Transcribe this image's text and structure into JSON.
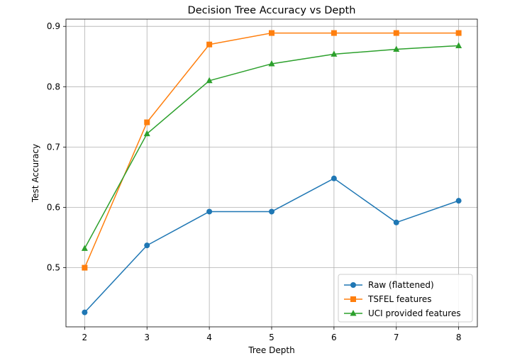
{
  "chart_data": {
    "type": "line",
    "title": "Decision Tree Accuracy vs Depth",
    "xlabel": "Tree Depth",
    "ylabel": "Test Accuracy",
    "x": [
      2,
      3,
      4,
      5,
      6,
      7,
      8
    ],
    "xticks": [
      2,
      3,
      4,
      5,
      6,
      7,
      8
    ],
    "xlim": [
      1.7,
      8.3
    ],
    "yticks": [
      0.5,
      0.6,
      0.7,
      0.8,
      0.9
    ],
    "ytick_labels": [
      "0.5",
      "0.6",
      "0.7",
      "0.8",
      "0.9"
    ],
    "ylim": [
      0.402,
      0.912
    ],
    "grid": true,
    "legend_position": "lower-right",
    "series": [
      {
        "name": "Raw (flattened)",
        "color": "#1f77b4",
        "marker": "circle",
        "values": [
          0.426,
          0.537,
          0.593,
          0.593,
          0.648,
          0.575,
          0.611
        ]
      },
      {
        "name": "TSFEL features",
        "color": "#ff7f0e",
        "marker": "square",
        "values": [
          0.5,
          0.741,
          0.87,
          0.889,
          0.889,
          0.889,
          0.889
        ]
      },
      {
        "name": "UCI provided features",
        "color": "#2ca02c",
        "marker": "triangle",
        "values": [
          0.532,
          0.722,
          0.81,
          0.838,
          0.854,
          0.862,
          0.868
        ]
      }
    ]
  }
}
